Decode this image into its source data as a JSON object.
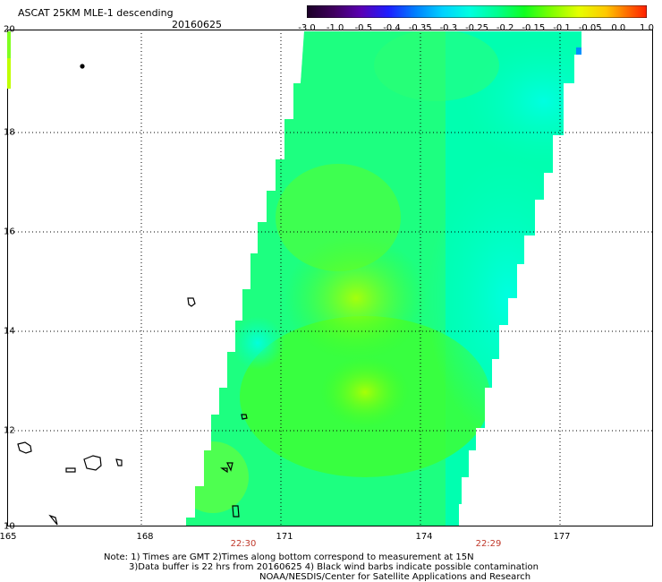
{
  "header": {
    "title": "ASCAT 25KM MLE-1 descending",
    "date": "20160625"
  },
  "colorbar": {
    "tick_labels": [
      "-3.0",
      "-1.0",
      "-0.5",
      "-0.4",
      "-0.35",
      "-0.3",
      "-0.25",
      "-0.2",
      "-0.15",
      "-0.1",
      "-0.05",
      "0.0",
      "1.0"
    ],
    "colors": [
      "#2a0038",
      "#5a008c",
      "#3014ff",
      "#0064ff",
      "#00a0ff",
      "#00dcff",
      "#00ffd8",
      "#00ff7a",
      "#40ff00",
      "#b4ff00",
      "#fff000",
      "#ff8c00",
      "#ff1e00"
    ]
  },
  "axes": {
    "lat_labels": [
      "20",
      "18",
      "16",
      "14",
      "12",
      "10"
    ],
    "lon_labels": [
      "165",
      "168",
      "171",
      "174",
      "177"
    ]
  },
  "times": {
    "left": "22:30",
    "right": "22:29"
  },
  "notes": {
    "line1": "Note: 1) Times are GMT 2)Times along bottom correspond to measurement at 15N",
    "line2": "3)Data buffer is 22 hrs from 20160625 4) Black wind barbs indicate possible contamination",
    "line3": "NOAA/NESDIS/Center for Satellite Applications and Research"
  }
}
